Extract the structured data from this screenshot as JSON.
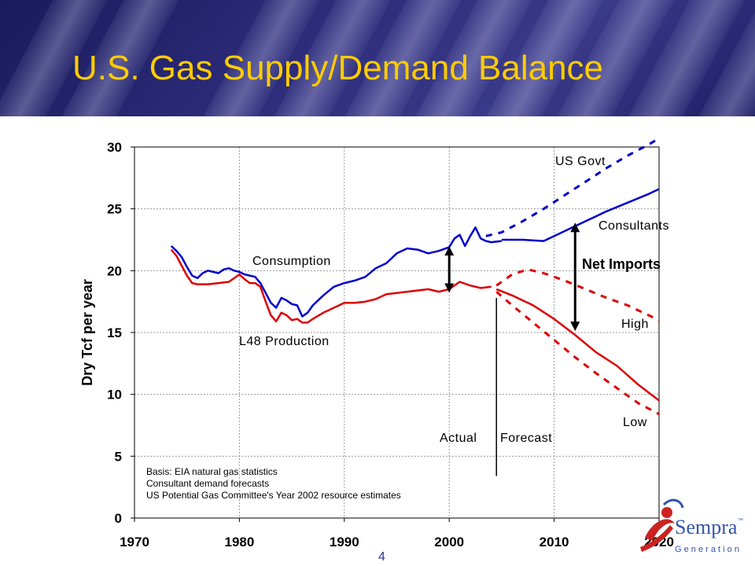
{
  "slide": {
    "title": "U.S. Gas Supply/Demand Balance",
    "page_number": "4"
  },
  "logo": {
    "brand": "Sempra",
    "tm": "™",
    "sub": "G e n e r a t i o n"
  },
  "colors": {
    "title": "#ffcc00",
    "consumption": "#0000cc",
    "production": "#dd0000",
    "banner": "#2c2c7a"
  },
  "chart_data": {
    "type": "line",
    "title": "",
    "xlabel": "",
    "ylabel": "Dry Tcf per year",
    "xlim": [
      1970,
      2020
    ],
    "ylim": [
      0,
      30
    ],
    "xticks": [
      1970,
      1980,
      1990,
      2000,
      2010,
      2020
    ],
    "yticks": [
      0,
      5,
      10,
      15,
      20,
      25,
      30
    ],
    "grid": true,
    "series": [
      {
        "name": "Consumption",
        "color": "#0000cc",
        "style": "solid",
        "x": [
          1973.5,
          1974,
          1974.5,
          1975,
          1975.5,
          1976,
          1976.5,
          1977,
          1977.5,
          1978,
          1978.5,
          1979,
          1979.5,
          1980,
          1980.5,
          1981,
          1981.5,
          1982,
          1982.5,
          1983,
          1983.5,
          1984,
          1984.5,
          1985,
          1985.5,
          1986,
          1986.5,
          1987,
          1988,
          1989,
          1990,
          1991,
          1992,
          1993,
          1994,
          1995,
          1996,
          1997,
          1998,
          1999,
          2000,
          2000.5,
          2001,
          2001.5,
          2002,
          2002.5,
          2003,
          2003.5,
          2004,
          2005
        ],
        "y": [
          22.0,
          21.6,
          21.1,
          20.3,
          19.6,
          19.4,
          19.8,
          20.0,
          19.9,
          19.8,
          20.1,
          20.2,
          20.0,
          19.9,
          19.7,
          19.6,
          19.5,
          19.0,
          18.2,
          17.4,
          17.0,
          17.8,
          17.6,
          17.3,
          17.2,
          16.3,
          16.6,
          17.2,
          18.0,
          18.7,
          19.0,
          19.2,
          19.5,
          20.2,
          20.6,
          21.4,
          21.8,
          21.7,
          21.4,
          21.6,
          21.9,
          22.6,
          22.9,
          22.0,
          22.8,
          23.5,
          22.6,
          22.4,
          22.3,
          22.4
        ]
      },
      {
        "name": "L48 Production",
        "color": "#dd0000",
        "style": "solid",
        "x": [
          1973.5,
          1974,
          1974.5,
          1975,
          1975.5,
          1976,
          1977,
          1978,
          1979,
          1980,
          1980.5,
          1981,
          1981.5,
          1982,
          1982.5,
          1983,
          1983.5,
          1984,
          1984.5,
          1985,
          1985.5,
          1986,
          1986.5,
          1987,
          1988,
          1989,
          1990,
          1991,
          1992,
          1993,
          1994,
          1995,
          1996,
          1997,
          1998,
          1999,
          2000,
          2001,
          2002,
          2003,
          2004
        ],
        "y": [
          21.7,
          21.2,
          20.4,
          19.6,
          19.0,
          18.9,
          18.9,
          19.0,
          19.1,
          19.7,
          19.3,
          19.0,
          19.0,
          18.7,
          17.5,
          16.4,
          15.9,
          16.6,
          16.4,
          16.0,
          16.1,
          15.8,
          15.8,
          16.1,
          16.6,
          17.0,
          17.4,
          17.4,
          17.5,
          17.7,
          18.1,
          18.2,
          18.3,
          18.4,
          18.5,
          18.3,
          18.5,
          19.1,
          18.8,
          18.6,
          18.7
        ]
      },
      {
        "name": "Consultants",
        "color": "#0000cc",
        "style": "solid",
        "x": [
          2005,
          2007,
          2009,
          2011,
          2013,
          2015,
          2017,
          2019,
          2020
        ],
        "y": [
          22.5,
          22.5,
          22.4,
          23.2,
          24.0,
          24.8,
          25.5,
          26.2,
          26.6
        ]
      },
      {
        "name": "US Govt",
        "color": "#0000cc",
        "style": "dashed",
        "x": [
          2003.5,
          2005,
          2007,
          2009,
          2011,
          2013,
          2015,
          2017,
          2019,
          2020
        ],
        "y": [
          22.8,
          23.1,
          24.0,
          25.0,
          26.1,
          27.2,
          28.3,
          29.3,
          30.2,
          30.7
        ]
      },
      {
        "name": "",
        "color": "#dd0000",
        "style": "solid",
        "x": [
          2004.5,
          2006,
          2008,
          2010,
          2012,
          2014,
          2016,
          2018,
          2020
        ],
        "y": [
          18.5,
          18.0,
          17.2,
          16.1,
          14.8,
          13.4,
          12.3,
          10.8,
          9.5
        ]
      },
      {
        "name": "High",
        "color": "#dd0000",
        "style": "dashed",
        "x": [
          2004.5,
          2006,
          2007.5,
          2009,
          2011,
          2013,
          2015,
          2017,
          2019,
          2020
        ],
        "y": [
          18.8,
          19.7,
          20.1,
          19.8,
          19.2,
          18.5,
          17.8,
          17.2,
          16.4,
          16.0
        ]
      },
      {
        "name": "Low",
        "color": "#dd0000",
        "style": "dashed",
        "x": [
          2004.5,
          2006,
          2008,
          2010,
          2012,
          2014,
          2016,
          2018,
          2020
        ],
        "y": [
          18.3,
          17.2,
          15.8,
          14.4,
          13.0,
          11.7,
          10.5,
          9.3,
          8.4
        ]
      }
    ],
    "arrows": [
      {
        "x": 2000,
        "y1": 18.6,
        "y2": 21.6
      },
      {
        "x": 2012,
        "y1": 15.5,
        "y2": 23.5
      }
    ],
    "divider": {
      "x": 2004.5,
      "y1": 3.4,
      "y2": 17.8
    },
    "annotations": {
      "consumption": "Consumption",
      "l48": "L48 Production",
      "us_govt": "US Govt",
      "consultants": "Consultants",
      "net_imports": "Net Imports",
      "high": "High",
      "low": "Low",
      "actual": "Actual",
      "forecast": "Forecast"
    },
    "basis": [
      "Basis: EIA natural gas statistics",
      "Consultant demand forecasts",
      "US Potential Gas Committee's Year 2002 resource estimates"
    ]
  }
}
